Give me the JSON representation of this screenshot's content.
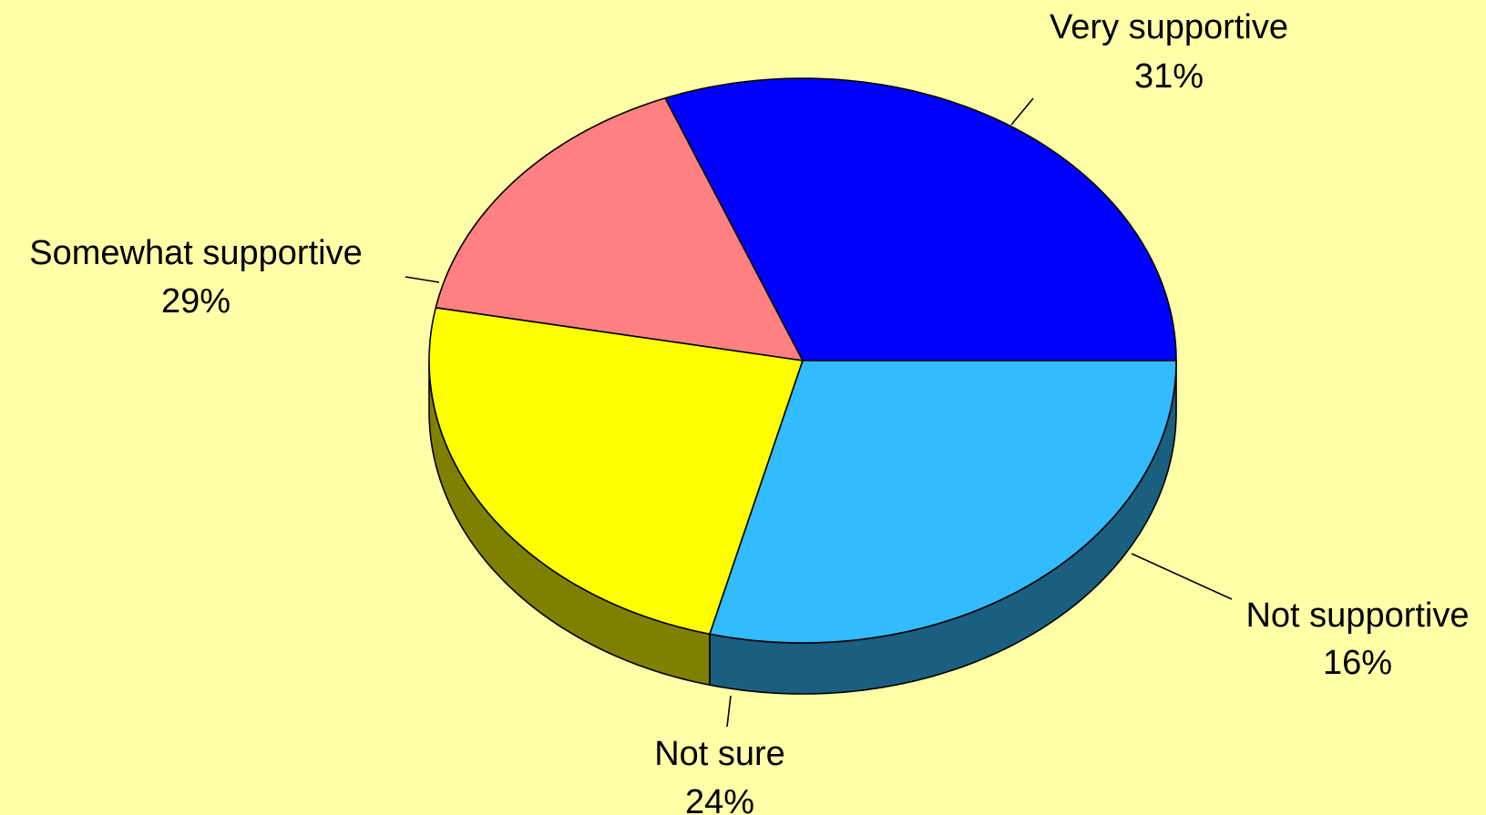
{
  "chart_data": {
    "type": "pie",
    "style": "3d",
    "slices": [
      {
        "label": "Very supportive",
        "percent_label": "31%",
        "value": 31,
        "color": "#0000FF",
        "side_color": "#00007F"
      },
      {
        "label": "Not supportive",
        "percent_label": "16%",
        "value": 16,
        "color": "#FF8080",
        "side_color": "#7F4040"
      },
      {
        "label": "Not sure",
        "percent_label": "24%",
        "value": 24,
        "color": "#FFFF00",
        "side_color": "#808000"
      },
      {
        "label": "Somewhat supportive",
        "percent_label": "29%",
        "value": 29,
        "color": "#33BBFF",
        "side_color": "#1A5E80"
      }
    ],
    "background": "#FFFFA8",
    "legend": "none"
  }
}
